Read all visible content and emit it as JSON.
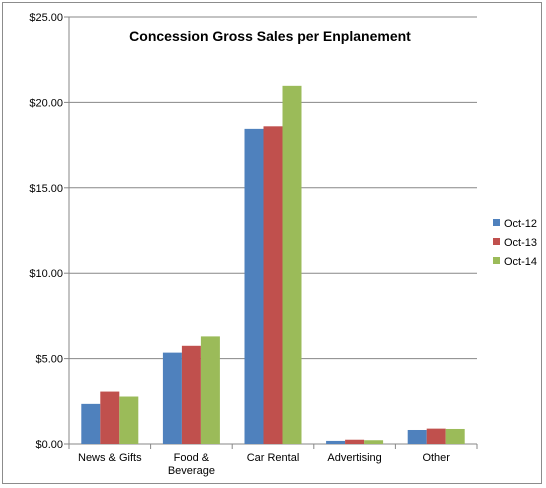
{
  "chart_data": {
    "type": "bar",
    "title": "Concession Gross Sales per Enplanement",
    "xlabel": "",
    "ylabel": "",
    "categories": [
      "News & Gifts",
      "Food &\nBeverage",
      "Car Rental",
      "Advertising",
      "Other"
    ],
    "series": [
      {
        "name": "Oct-12",
        "color": "#4f81bd",
        "values": [
          2.35,
          5.35,
          18.45,
          0.18,
          0.82
        ]
      },
      {
        "name": "Oct-13",
        "color": "#c0504d",
        "values": [
          3.07,
          5.75,
          18.6,
          0.25,
          0.9
        ]
      },
      {
        "name": "Oct-14",
        "color": "#9bbb59",
        "values": [
          2.78,
          6.3,
          20.97,
          0.22,
          0.88
        ]
      }
    ],
    "ylim": [
      0,
      25
    ],
    "yticks": [
      0,
      5,
      10,
      15,
      20,
      25
    ],
    "ytick_labels": [
      "$0.00",
      "$5.00",
      "$10.00",
      "$15.00",
      "$20.00",
      "$25.00"
    ],
    "grid": true,
    "legend_position": "right"
  }
}
